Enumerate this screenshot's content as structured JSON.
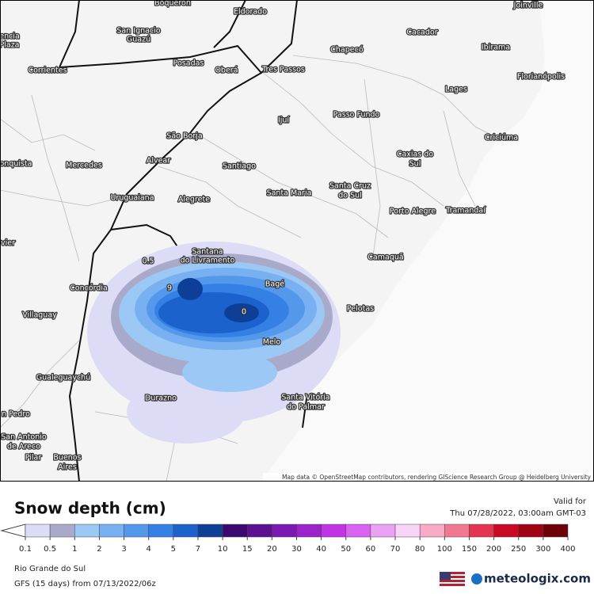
{
  "map": {
    "places": [
      {
        "lines": [
          "Boqueron"
        ]
      },
      {
        "lines": [
          "Eldorado"
        ]
      },
      {
        "lines": [
          "Joinville"
        ]
      },
      {
        "lines": [
          "San Ignacio",
          "Guazú"
        ]
      },
      {
        "lines": [
          "Cacador"
        ]
      },
      {
        "lines": [
          "encia",
          "Plaza"
        ]
      },
      {
        "lines": [
          "Chapecó"
        ]
      },
      {
        "lines": [
          "Ibirama"
        ]
      },
      {
        "lines": [
          "Posadas"
        ]
      },
      {
        "lines": [
          "Oberá"
        ]
      },
      {
        "lines": [
          "Corrientes"
        ]
      },
      {
        "lines": [
          "Tres Passos"
        ]
      },
      {
        "lines": [
          "Florianópolis"
        ]
      },
      {
        "lines": [
          "Lages"
        ]
      },
      {
        "lines": [
          "Ijuí"
        ]
      },
      {
        "lines": [
          "Passo Fundo"
        ]
      },
      {
        "lines": [
          "São Borja"
        ]
      },
      {
        "lines": [
          "Criciúma"
        ]
      },
      {
        "lines": [
          "Caxias do",
          "Sul"
        ]
      },
      {
        "lines": [
          "onquista"
        ]
      },
      {
        "lines": [
          "Mercedes"
        ]
      },
      {
        "lines": [
          "Alvear"
        ]
      },
      {
        "lines": [
          "Santiago"
        ]
      },
      {
        "lines": [
          "Uruguaiana"
        ]
      },
      {
        "lines": [
          "Alegrete"
        ]
      },
      {
        "lines": [
          "Santa Maria"
        ]
      },
      {
        "lines": [
          "Santa Cruz",
          "do Sul"
        ]
      },
      {
        "lines": [
          "Porto Alegre"
        ]
      },
      {
        "lines": [
          "Tramandaí"
        ]
      },
      {
        "lines": [
          "vier"
        ]
      },
      {
        "lines": [
          "Santana",
          "do Livramento"
        ]
      },
      {
        "lines": [
          "Camaquã"
        ]
      },
      {
        "lines": [
          "Concórdia"
        ]
      },
      {
        "lines": [
          "Bagé"
        ]
      },
      {
        "lines": [
          "Pelotas"
        ]
      },
      {
        "lines": [
          "Villaguay"
        ]
      },
      {
        "lines": [
          "Melo"
        ]
      },
      {
        "lines": [
          "Gualeguaychú"
        ]
      },
      {
        "lines": [
          "Santa Vitória",
          "do Palmar"
        ]
      },
      {
        "lines": [
          "Durazno"
        ]
      },
      {
        "lines": [
          "n Pedro"
        ]
      },
      {
        "lines": [
          "San Antonio",
          "de Areco"
        ]
      },
      {
        "lines": [
          "Pilar"
        ]
      },
      {
        "lines": [
          "Buenos",
          "Aires"
        ]
      }
    ],
    "contour_labels": [
      "0.5",
      "9",
      "0"
    ],
    "attribution": "Map data © OpenStreetMap contributors, rendering GIScience Research Group @ Heidelberg University"
  },
  "legend": {
    "title": "Snow depth (cm)",
    "labels": [
      "0.1",
      "0.5",
      "1",
      "2",
      "3",
      "4",
      "5",
      "7",
      "10",
      "15",
      "20",
      "30",
      "40",
      "50",
      "60",
      "70",
      "80",
      "100",
      "150",
      "200",
      "250",
      "300",
      "400"
    ],
    "colors": [
      "#dcdcf6",
      "#a9a9c9",
      "#9cc8f6",
      "#78b0f2",
      "#5498ec",
      "#3480e4",
      "#1c62cc",
      "#0e3f96",
      "#3c0870",
      "#5a1290",
      "#7a1ab2",
      "#9c22cc",
      "#c034e6",
      "#da62f0",
      "#eaa2f2",
      "#f8d4f8",
      "#f8aac6",
      "#f07890",
      "#e43452",
      "#c80a24",
      "#a00414",
      "#6e0008"
    ]
  },
  "valid": {
    "label": "Valid for",
    "time": "Thu 07/28/2022, 03:00am GMT-03"
  },
  "footer": {
    "region": "Rio Grande do Sul",
    "model": "GFS (15 days) from 07/13/2022/06z"
  },
  "logo": "meteologix.com"
}
